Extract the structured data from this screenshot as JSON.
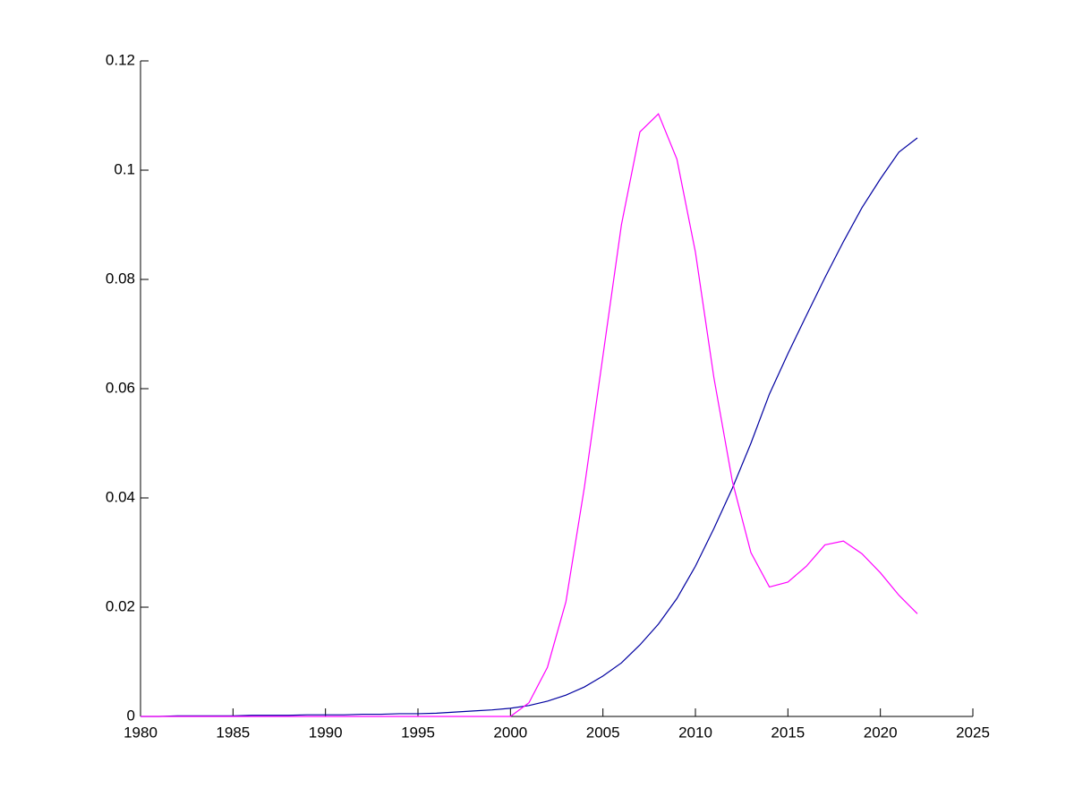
{
  "chart_data": {
    "type": "line",
    "x": [
      1980,
      1981,
      1982,
      1983,
      1984,
      1985,
      1986,
      1987,
      1988,
      1989,
      1990,
      1991,
      1992,
      1993,
      1994,
      1995,
      1996,
      1997,
      1998,
      1999,
      2000,
      2001,
      2002,
      2003,
      2004,
      2005,
      2006,
      2007,
      2008,
      2009,
      2010,
      2011,
      2012,
      2013,
      2014,
      2015,
      2016,
      2017,
      2018,
      2019,
      2020,
      2021,
      2022
    ],
    "series": [
      {
        "color": "#0000a0",
        "values": [
          0,
          0,
          0.0001,
          0.0001,
          0.0001,
          0.0001,
          0.0002,
          0.0002,
          0.0002,
          0.0003,
          0.0003,
          0.0003,
          0.0004,
          0.0004,
          0.0005,
          0.0005,
          0.0006,
          0.0008,
          0.001,
          0.0012,
          0.0015,
          0.002,
          0.0028,
          0.0039,
          0.0054,
          0.0074,
          0.0098,
          0.0131,
          0.0169,
          0.0216,
          0.0275,
          0.0344,
          0.0418,
          0.05,
          0.059,
          0.0664,
          0.0734,
          0.0803,
          0.0869,
          0.0931,
          0.0984,
          0.1033,
          0.1059
        ]
      },
      {
        "color": "#ff00ff",
        "values": [
          0,
          0,
          0,
          0,
          0,
          0,
          0,
          0,
          0,
          0,
          0,
          0,
          0,
          0,
          0,
          0,
          0,
          0,
          0,
          0,
          0,
          0.0025,
          0.009,
          0.021,
          0.042,
          0.066,
          0.09,
          0.107,
          0.1103,
          0.102,
          0.085,
          0.062,
          0.043,
          0.03,
          0.0237,
          0.0246,
          0.0275,
          0.0314,
          0.0321,
          0.0298,
          0.0263,
          0.0222,
          0.0188
        ]
      }
    ],
    "xlim": [
      1980,
      2025
    ],
    "xticks": [
      1980,
      1985,
      1990,
      1995,
      2000,
      2005,
      2010,
      2015,
      2020,
      2025
    ],
    "ylim": [
      0,
      0.12
    ],
    "yticks": [
      0,
      0.02,
      0.04,
      0.06,
      0.08,
      0.1,
      0.12
    ]
  }
}
